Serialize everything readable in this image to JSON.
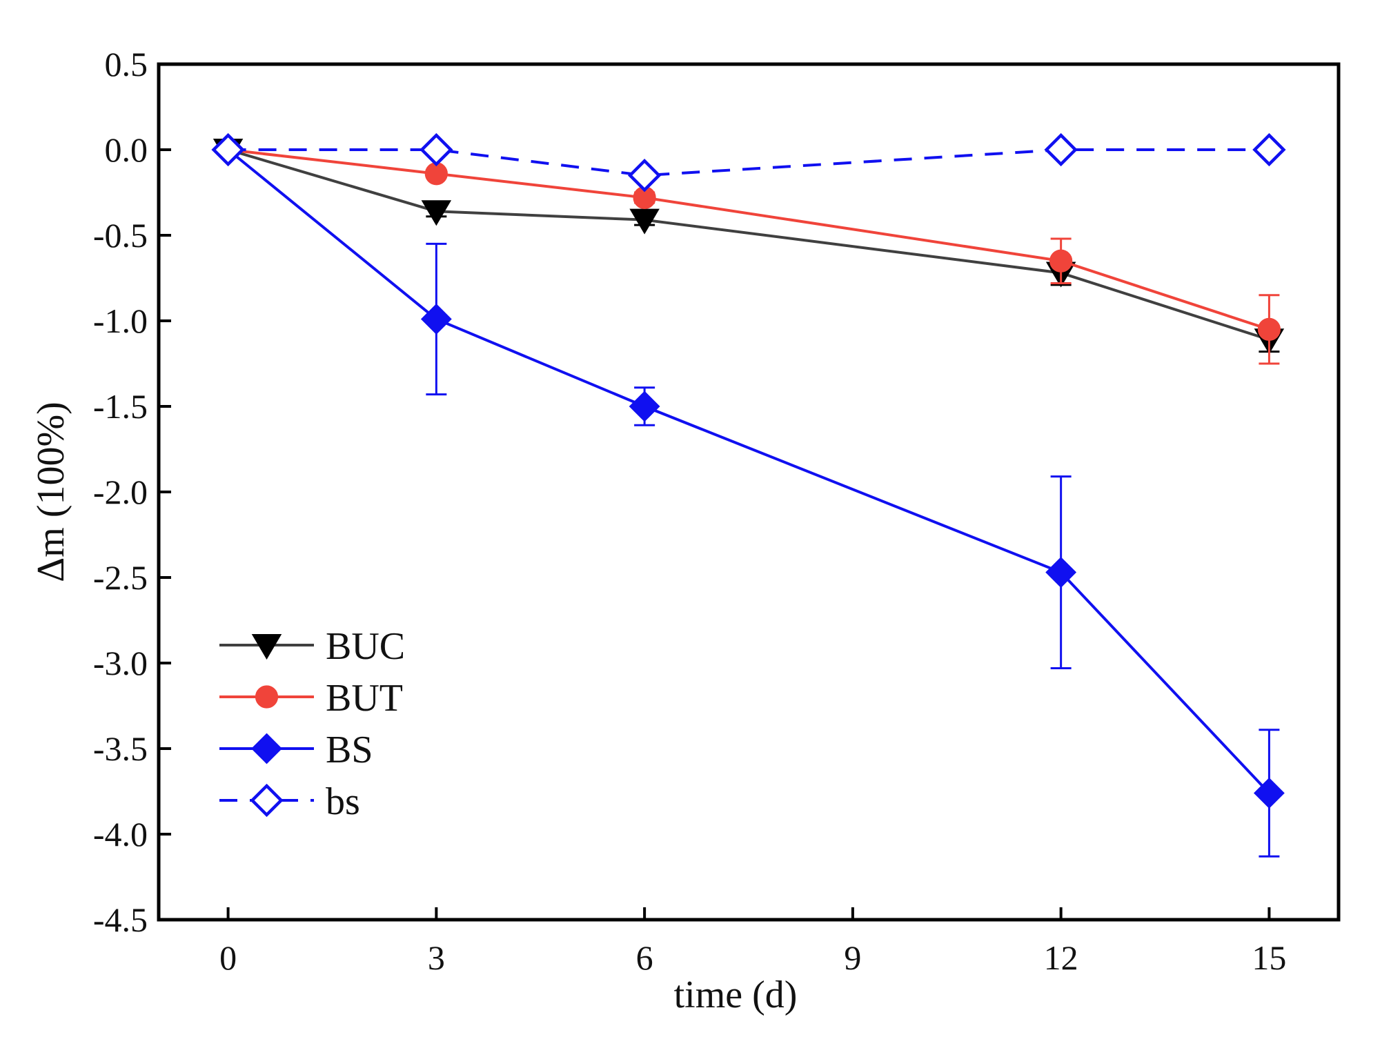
{
  "chart_data": {
    "type": "line",
    "title": "",
    "xlabel": "time (d)",
    "ylabel": "Δm (100%)",
    "xlim": [
      -1,
      16
    ],
    "ylim": [
      -4.5,
      0.5
    ],
    "xticks": [
      0,
      3,
      6,
      9,
      12,
      15
    ],
    "yticks": [
      0.5,
      0.0,
      -0.5,
      -1.0,
      -1.5,
      -2.0,
      -2.5,
      -3.0,
      -3.5,
      -4.0,
      -4.5
    ],
    "xtick_labels": [
      "0",
      "3",
      "6",
      "9",
      "12",
      "15"
    ],
    "ytick_labels": [
      "0.5",
      "0.0",
      "-0.5",
      "-1.0",
      "-1.5",
      "-2.0",
      "-2.5",
      "-3.0",
      "-3.5",
      "-4.0",
      "-4.5"
    ],
    "grid": false,
    "legend_position": "bottom-left",
    "series": [
      {
        "name": "BUC",
        "color": "#000000",
        "line_color": "#404040",
        "marker": "triangle-down",
        "filled": true,
        "dashed": false,
        "x": [
          0,
          3,
          6,
          12,
          15
        ],
        "values": [
          0.0,
          -0.36,
          -0.41,
          -0.72,
          -1.11
        ],
        "errors": [
          0.0,
          0.03,
          0.03,
          0.07,
          0.07
        ]
      },
      {
        "name": "BUT",
        "color": "#f0443a",
        "line_color": "#f0443a",
        "marker": "circle",
        "filled": true,
        "dashed": false,
        "x": [
          0,
          3,
          6,
          12,
          15
        ],
        "values": [
          0.0,
          -0.14,
          -0.28,
          -0.65,
          -1.05
        ],
        "errors": [
          0.0,
          0.02,
          0.03,
          0.13,
          0.2
        ]
      },
      {
        "name": "BS",
        "color": "#1010f0",
        "line_color": "#1010f0",
        "marker": "diamond",
        "filled": true,
        "dashed": false,
        "x": [
          0,
          3,
          6,
          12,
          15
        ],
        "values": [
          0.0,
          -0.99,
          -1.5,
          -2.47,
          -3.76
        ],
        "errors": [
          0.0,
          0.44,
          0.11,
          0.56,
          0.37
        ]
      },
      {
        "name": "bs",
        "color": "#1010f0",
        "line_color": "#1010f0",
        "marker": "diamond",
        "filled": false,
        "dashed": true,
        "x": [
          0,
          3,
          6,
          12,
          15
        ],
        "values": [
          0.0,
          0.0,
          -0.15,
          0.0,
          0.0
        ],
        "errors": [
          0.0,
          0.0,
          0.0,
          0.0,
          0.0
        ]
      }
    ]
  }
}
